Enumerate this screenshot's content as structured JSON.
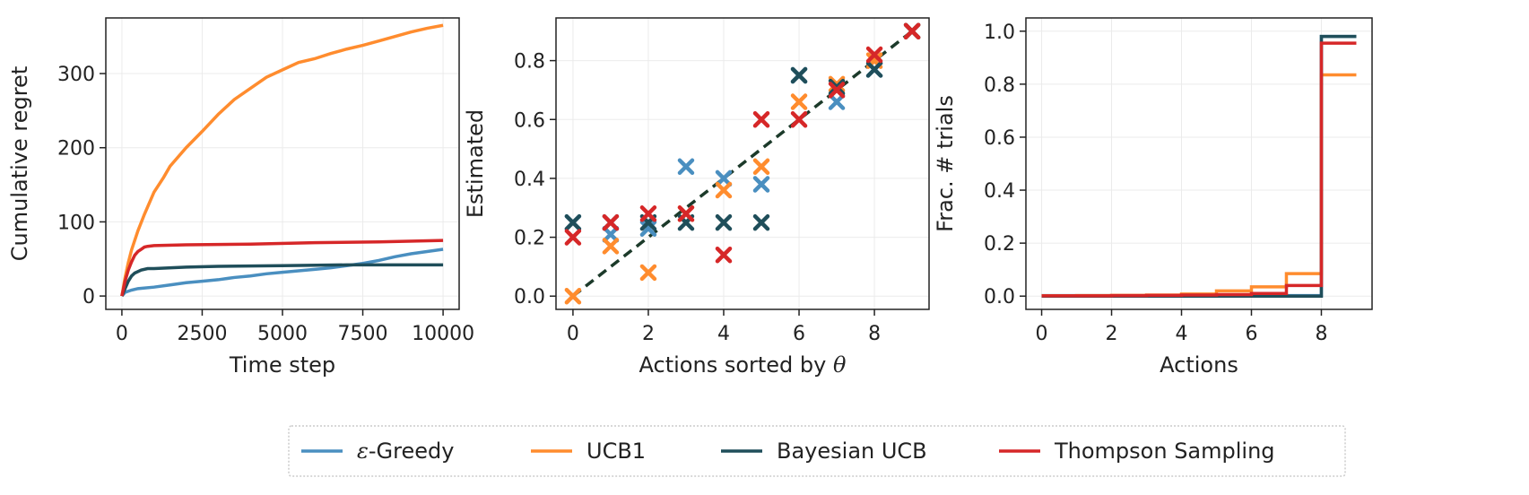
{
  "series_meta": [
    {
      "key": "eps",
      "name": "ε-Greedy",
      "name_prefix": "ε",
      "name_suffix": "-Greedy",
      "color": "#4a8fc0"
    },
    {
      "key": "ucb1",
      "name": "UCB1",
      "color": "#ff8c2e"
    },
    {
      "key": "bucb",
      "name": "Bayesian UCB",
      "color": "#1f4e5a"
    },
    {
      "key": "ts",
      "name": "Thompson Sampling",
      "color": "#d62728"
    }
  ],
  "chart_data": [
    {
      "type": "line",
      "xlabel": "Time step",
      "ylabel": "Cumulative regret",
      "xlim": [
        -500,
        10500
      ],
      "ylim": [
        -18,
        375
      ],
      "xticks": [
        0,
        2500,
        5000,
        7500,
        10000
      ],
      "yticks": [
        0,
        100,
        200,
        300
      ],
      "grid": true,
      "series": [
        {
          "key": "eps",
          "x": [
            0,
            100,
            300,
            500,
            1000,
            1500,
            2000,
            2500,
            3000,
            3500,
            4000,
            4500,
            5000,
            5500,
            6000,
            6500,
            7000,
            7500,
            8000,
            8500,
            9000,
            9500,
            10000
          ],
          "values": [
            0,
            5,
            8,
            10,
            12,
            15,
            18,
            20,
            22,
            25,
            27,
            30,
            32,
            34,
            36,
            38,
            41,
            44,
            48,
            53,
            57,
            60,
            63
          ]
        },
        {
          "key": "ucb1",
          "x": [
            0,
            100,
            200,
            300,
            500,
            700,
            1000,
            1300,
            1500,
            2000,
            2500,
            3000,
            3500,
            4000,
            4500,
            5000,
            5500,
            6000,
            6500,
            7000,
            7500,
            8000,
            8500,
            9000,
            9500,
            10000
          ],
          "values": [
            0,
            25,
            45,
            62,
            88,
            110,
            140,
            160,
            175,
            200,
            222,
            245,
            265,
            280,
            295,
            305,
            315,
            320,
            327,
            333,
            338,
            344,
            350,
            356,
            361,
            365
          ]
        },
        {
          "key": "bucb",
          "x": [
            0,
            100,
            200,
            300,
            400,
            600,
            800,
            1000,
            2000,
            3000,
            5000,
            7000,
            10000
          ],
          "values": [
            0,
            10,
            20,
            27,
            31,
            35,
            37,
            37,
            39,
            40,
            41,
            42,
            42
          ]
        },
        {
          "key": "ts",
          "x": [
            0,
            100,
            200,
            300,
            400,
            500,
            600,
            700,
            800,
            1000,
            2000,
            4000,
            6000,
            8000,
            10000
          ],
          "values": [
            0,
            20,
            35,
            46,
            55,
            60,
            63,
            66,
            67,
            68,
            69,
            70,
            72,
            73,
            75
          ]
        }
      ]
    },
    {
      "type": "scatter",
      "xlabel_prefix": "Actions sorted by ",
      "xlabel_symbol": "θ",
      "ylabel": "Estimated",
      "xlim": [
        -0.45,
        9.45
      ],
      "ylim": [
        -0.045,
        0.945
      ],
      "xticks": [
        0,
        2,
        4,
        6,
        8
      ],
      "yticks": [
        0.0,
        0.2,
        0.4,
        0.6,
        0.8
      ],
      "grid": true,
      "reference_line": {
        "style": "dashed",
        "color": "#1c3a2a",
        "x": [
          0,
          9
        ],
        "values": [
          0.0,
          0.9
        ]
      },
      "series": [
        {
          "key": "eps",
          "x": [
            0,
            1,
            2,
            3,
            4,
            5,
            6,
            7,
            8,
            9
          ],
          "values": [
            0.25,
            0.21,
            0.23,
            0.44,
            0.4,
            0.38,
            0.75,
            0.66,
            0.77,
            0.9
          ]
        },
        {
          "key": "ucb1",
          "x": [
            0,
            1,
            2,
            3,
            4,
            5,
            6,
            7,
            8,
            9
          ],
          "values": [
            0.0,
            0.17,
            0.08,
            0.28,
            0.36,
            0.44,
            0.66,
            0.72,
            0.8,
            0.9
          ]
        },
        {
          "key": "bucb",
          "x": [
            0,
            1,
            2,
            3,
            4,
            5,
            6,
            7,
            8,
            9
          ],
          "values": [
            0.25,
            0.25,
            0.25,
            0.25,
            0.25,
            0.25,
            0.75,
            0.71,
            0.77,
            0.9
          ]
        },
        {
          "key": "ts",
          "x": [
            0,
            1,
            2,
            3,
            4,
            5,
            6,
            7,
            8,
            9
          ],
          "values": [
            0.2,
            0.25,
            0.28,
            0.28,
            0.14,
            0.6,
            0.6,
            0.7,
            0.82,
            0.9
          ]
        }
      ]
    },
    {
      "type": "line",
      "step": "post",
      "xlabel": "Actions",
      "ylabel": "Frac. # trials",
      "xlim": [
        -0.45,
        9.45
      ],
      "ylim": [
        -0.05,
        1.05
      ],
      "xticks": [
        0,
        2,
        4,
        6,
        8
      ],
      "yticks": [
        0.0,
        0.2,
        0.4,
        0.6,
        0.8,
        1.0
      ],
      "grid": true,
      "series": [
        {
          "key": "eps",
          "x": [
            0,
            1,
            2,
            3,
            4,
            5,
            6,
            7,
            8,
            9
          ],
          "values": [
            0.002,
            0.002,
            0.002,
            0.002,
            0.002,
            0.002,
            0.002,
            0.002,
            0.98,
            0.98
          ]
        },
        {
          "key": "ucb1",
          "x": [
            0,
            1,
            2,
            3,
            4,
            5,
            6,
            7,
            8,
            9
          ],
          "values": [
            0.001,
            0.002,
            0.003,
            0.004,
            0.008,
            0.02,
            0.035,
            0.085,
            0.835,
            0.835
          ]
        },
        {
          "key": "bucb",
          "x": [
            0,
            1,
            2,
            3,
            4,
            5,
            6,
            7,
            8,
            9
          ],
          "values": [
            0.0,
            0.0,
            0.0,
            0.0,
            0.0,
            0.0,
            0.0,
            0.0,
            0.98,
            0.98
          ]
        },
        {
          "key": "ts",
          "x": [
            0,
            1,
            2,
            3,
            4,
            5,
            6,
            7,
            8,
            9
          ],
          "values": [
            0.001,
            0.001,
            0.002,
            0.003,
            0.004,
            0.006,
            0.01,
            0.04,
            0.955,
            0.955
          ]
        }
      ]
    }
  ]
}
